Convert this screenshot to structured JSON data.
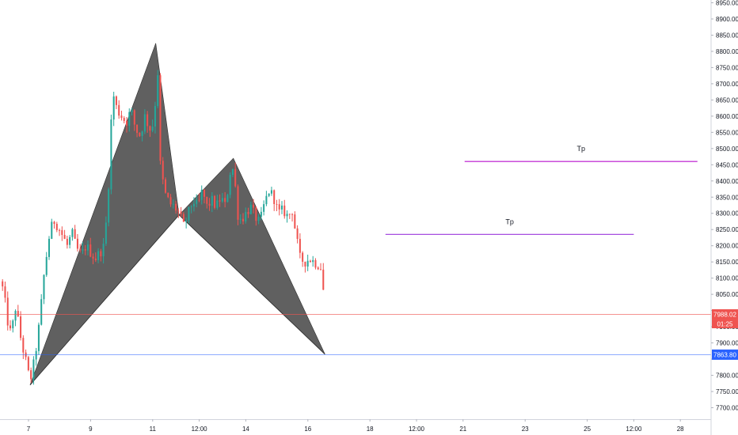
{
  "chart_data": {
    "type": "candlestick",
    "colors": {
      "up": "#26a69a",
      "down": "#ef5350",
      "pattern_fill": "#4f4f4f",
      "tp_upper": "#c53ad6",
      "tp_lower": "#a64de0",
      "current_price": "#ef5350",
      "support": "#2962ff",
      "axis_text": "#131722"
    },
    "y_axis": {
      "range": [
        7675,
        8960
      ],
      "ticks": [
        "7700.00",
        "7750.00",
        "7800.00",
        "7850.00",
        "7900.00",
        "7950.00",
        "8000.00",
        "8050.00",
        "8100.00",
        "8150.00",
        "8200.00",
        "8250.00",
        "8300.00",
        "8350.00",
        "8400.00",
        "8450.00",
        "8500.00",
        "8550.00",
        "8600.00",
        "8650.00",
        "8700.00",
        "8750.00",
        "8800.00",
        "8850.00",
        "8900.00",
        "8950.00"
      ]
    },
    "x_axis": {
      "ticks": [
        {
          "label": "7",
          "t": 0
        },
        {
          "label": "9",
          "t": 2
        },
        {
          "label": "11",
          "t": 4
        },
        {
          "label": "12:00",
          "t": 5.5
        },
        {
          "label": "14",
          "t": 7
        },
        {
          "label": "16",
          "t": 9
        },
        {
          "label": "18",
          "t": 11
        },
        {
          "label": "12:00",
          "t": 12.5
        },
        {
          "label": "21",
          "t": 14
        },
        {
          "label": "23",
          "t": 16
        },
        {
          "label": "25",
          "t": 18
        },
        {
          "label": "12:00",
          "t": 19.5
        },
        {
          "label": "28",
          "t": 21
        }
      ]
    },
    "harmonic_pattern": {
      "points": [
        {
          "t": 0.05,
          "price": 7770
        },
        {
          "t": 4.1,
          "price": 8825
        },
        {
          "t": 4.85,
          "price": 8295
        },
        {
          "t": 6.6,
          "price": 8470
        },
        {
          "t": 9.55,
          "price": 7865
        }
      ]
    },
    "tp_lines": [
      {
        "label": "Tp",
        "price": 8460,
        "t_start": 14.05,
        "t_end": 21.55,
        "color_key": "tp_upper"
      },
      {
        "label": "Tp",
        "price": 8235,
        "t_start": 11.5,
        "t_end": 19.5,
        "color_key": "tp_lower"
      }
    ],
    "current_price": {
      "value": "7988.02",
      "countdown": "01:25",
      "price": 7988.02
    },
    "support_level": {
      "value": "7863.80",
      "price": 7863.8
    },
    "price_path": [
      {
        "t": -0.92,
        "p": 8090
      },
      {
        "t": -0.8,
        "p": 8060
      },
      {
        "t": -0.7,
        "p": 7980
      },
      {
        "t": -0.6,
        "p": 7930
      },
      {
        "t": -0.5,
        "p": 7960
      },
      {
        "t": -0.4,
        "p": 8020
      },
      {
        "t": -0.3,
        "p": 7940
      },
      {
        "t": -0.2,
        "p": 7890
      },
      {
        "t": -0.1,
        "p": 7850
      },
      {
        "t": 0.05,
        "p": 7780
      },
      {
        "t": 0.2,
        "p": 7850
      },
      {
        "t": 0.35,
        "p": 7960
      },
      {
        "t": 0.5,
        "p": 8110
      },
      {
        "t": 0.65,
        "p": 8220
      },
      {
        "t": 0.8,
        "p": 8280
      },
      {
        "t": 0.95,
        "p": 8260
      },
      {
        "t": 1.1,
        "p": 8230
      },
      {
        "t": 1.25,
        "p": 8200
      },
      {
        "t": 1.4,
        "p": 8240
      },
      {
        "t": 1.55,
        "p": 8190
      },
      {
        "t": 1.7,
        "p": 8170
      },
      {
        "t": 1.85,
        "p": 8200
      },
      {
        "t": 2.0,
        "p": 8180
      },
      {
        "t": 2.15,
        "p": 8160
      },
      {
        "t": 2.3,
        "p": 8180
      },
      {
        "t": 2.45,
        "p": 8200
      },
      {
        "t": 2.6,
        "p": 8420
      },
      {
        "t": 2.7,
        "p": 8680
      },
      {
        "t": 2.85,
        "p": 8620
      },
      {
        "t": 3.0,
        "p": 8600
      },
      {
        "t": 3.15,
        "p": 8580
      },
      {
        "t": 3.3,
        "p": 8620
      },
      {
        "t": 3.45,
        "p": 8560
      },
      {
        "t": 3.6,
        "p": 8540
      },
      {
        "t": 3.75,
        "p": 8600
      },
      {
        "t": 3.9,
        "p": 8560
      },
      {
        "t": 4.05,
        "p": 8580
      },
      {
        "t": 4.15,
        "p": 8780
      },
      {
        "t": 4.25,
        "p": 8440
      },
      {
        "t": 4.4,
        "p": 8360
      },
      {
        "t": 4.55,
        "p": 8330
      },
      {
        "t": 4.7,
        "p": 8320
      },
      {
        "t": 4.85,
        "p": 8300
      },
      {
        "t": 5.0,
        "p": 8260
      },
      {
        "t": 5.15,
        "p": 8300
      },
      {
        "t": 5.3,
        "p": 8340
      },
      {
        "t": 5.45,
        "p": 8320
      },
      {
        "t": 5.6,
        "p": 8370
      },
      {
        "t": 5.75,
        "p": 8320
      },
      {
        "t": 5.9,
        "p": 8340
      },
      {
        "t": 6.05,
        "p": 8320
      },
      {
        "t": 6.2,
        "p": 8350
      },
      {
        "t": 6.35,
        "p": 8320
      },
      {
        "t": 6.5,
        "p": 8430
      },
      {
        "t": 6.62,
        "p": 8440
      },
      {
        "t": 6.72,
        "p": 8300
      },
      {
        "t": 6.85,
        "p": 8280
      },
      {
        "t": 7.0,
        "p": 8300
      },
      {
        "t": 7.15,
        "p": 8320
      },
      {
        "t": 7.3,
        "p": 8290
      },
      {
        "t": 7.45,
        "p": 8270
      },
      {
        "t": 7.6,
        "p": 8330
      },
      {
        "t": 7.75,
        "p": 8370
      },
      {
        "t": 7.9,
        "p": 8350
      },
      {
        "t": 8.05,
        "p": 8300
      },
      {
        "t": 8.2,
        "p": 8310
      },
      {
        "t": 8.35,
        "p": 8290
      },
      {
        "t": 8.5,
        "p": 8310
      },
      {
        "t": 8.62,
        "p": 8230
      },
      {
        "t": 8.75,
        "p": 8160
      },
      {
        "t": 8.9,
        "p": 8150
      },
      {
        "t": 9.05,
        "p": 8160
      },
      {
        "t": 9.2,
        "p": 8150
      },
      {
        "t": 9.35,
        "p": 8140
      },
      {
        "t": 9.45,
        "p": 8130
      },
      {
        "t": 9.55,
        "p": 7990
      }
    ]
  }
}
